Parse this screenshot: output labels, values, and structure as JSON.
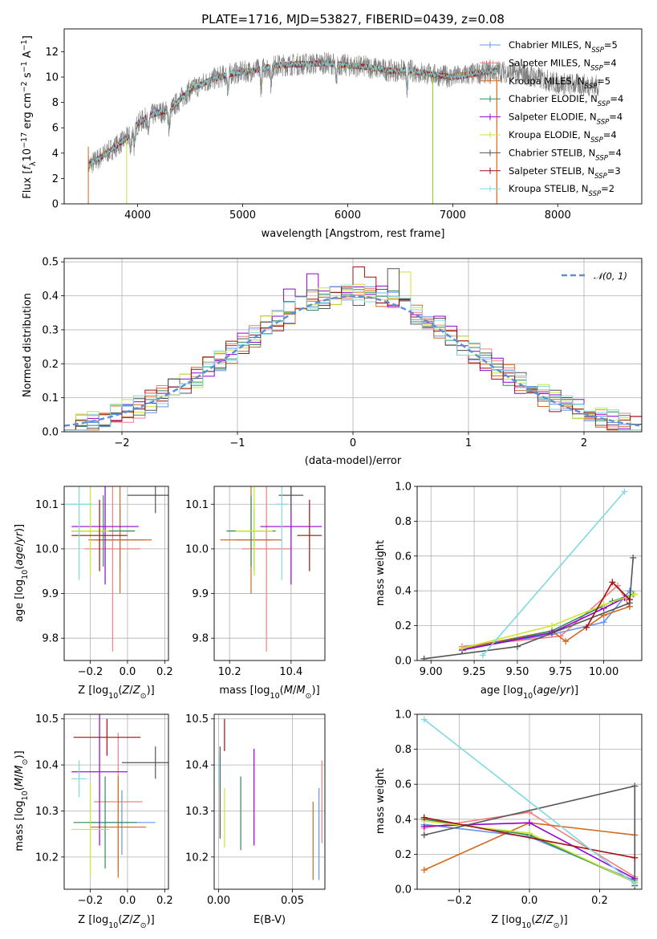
{
  "colors": {
    "Chabrier MILES": "#6495ed",
    "Salpeter MILES": "#f08080",
    "Kroupa MILES": "#d2691e",
    "Chabrier ELODIE": "#2e8b57",
    "Salpeter ELODIE": "#9400d3",
    "Kroupa ELODIE": "#c8e632",
    "Chabrier STELIB": "#555555",
    "Salpeter STELIB": "#a40f0f",
    "Kroupa STELIB": "#7fd9e0"
  },
  "chart_data": [
    {
      "id": "spectrum",
      "type": "line",
      "title": "PLATE=1716, MJD=53827, FIBERID=0439, z=0.08",
      "xlabel": "wavelength [Angstrom, rest frame]",
      "ylabel": "Flux [f_λ 10^{-17} erg cm^{-2} s^{-1} A^{-1}]",
      "xlim": [
        3300,
        8800
      ],
      "ylim": [
        0,
        13.8
      ],
      "xticks": [
        4000,
        5000,
        6000,
        7000,
        8000
      ],
      "yticks": [
        0,
        2,
        4,
        6,
        8,
        10,
        12
      ],
      "grid": false,
      "legend_position": "top-right",
      "legend": [
        {
          "label": "Chabrier MILES, N_SSP=5",
          "base": "Chabrier MILES, N",
          "sub": "SSP",
          "tail": "=5",
          "color": "Chabrier MILES"
        },
        {
          "label": "Salpeter MILES, N_SSP=4",
          "base": "Salpeter MILES, N",
          "sub": "SSP",
          "tail": "=4",
          "color": "Salpeter MILES"
        },
        {
          "label": "Kroupa MILES, N_SSP=5",
          "base": "Kroupa MILES, N",
          "sub": "SSP",
          "tail": "=5",
          "color": "Kroupa MILES"
        },
        {
          "label": "Chabrier ELODIE, N_SSP=4",
          "base": "Chabrier ELODIE, N",
          "sub": "SSP",
          "tail": "=4",
          "color": "Chabrier ELODIE"
        },
        {
          "label": "Salpeter ELODIE, N_SSP=4",
          "base": "Salpeter ELODIE, N",
          "sub": "SSP",
          "tail": "=4",
          "color": "Salpeter ELODIE"
        },
        {
          "label": "Kroupa ELODIE, N_SSP=4",
          "base": "Kroupa ELODIE, N",
          "sub": "SSP",
          "tail": "=4",
          "color": "Kroupa ELODIE"
        },
        {
          "label": "Chabrier STELIB, N_SSP=4",
          "base": "Chabrier STELIB, N",
          "sub": "SSP",
          "tail": "=4",
          "color": "Chabrier STELIB"
        },
        {
          "label": "Salpeter STELIB, N_SSP=3",
          "base": "Salpeter STELIB, N",
          "sub": "SSP",
          "tail": "=3",
          "color": "Salpeter STELIB"
        },
        {
          "label": "Kroupa STELIB, N_SSP=2",
          "base": "Kroupa STELIB, N",
          "sub": "SSP",
          "tail": "=2",
          "color": "Kroupa STELIB"
        }
      ],
      "data_series": {
        "name": "data",
        "color": "#808080",
        "x_start": 3530,
        "x_end": 8400,
        "continuum_points": [
          [
            3530,
            3.0
          ],
          [
            3700,
            4.0
          ],
          [
            3900,
            5.2
          ],
          [
            4000,
            6.3
          ],
          [
            4100,
            6.9
          ],
          [
            4200,
            7.2
          ],
          [
            4300,
            7.3
          ],
          [
            4400,
            8.2
          ],
          [
            4500,
            9.0
          ],
          [
            4700,
            9.8
          ],
          [
            4900,
            10.3
          ],
          [
            5100,
            10.5
          ],
          [
            5300,
            10.9
          ],
          [
            5500,
            11.0
          ],
          [
            5800,
            11.1
          ],
          [
            6000,
            10.9
          ],
          [
            6200,
            10.8
          ],
          [
            6400,
            10.5
          ],
          [
            6600,
            10.5
          ],
          [
            6800,
            10.2
          ],
          [
            7000,
            10.0
          ],
          [
            7400,
            10.5
          ],
          [
            7700,
            10.2
          ],
          [
            8000,
            9.5
          ],
          [
            8400,
            9.3
          ]
        ],
        "noise_amplitude": 0.9,
        "absorption_lines": [
          3934,
          3969,
          4102,
          4300,
          4861,
          5175,
          5270,
          5890,
          6563
        ]
      },
      "model_x_range": [
        3530,
        7420
      ]
    },
    {
      "id": "residual-histogram",
      "type": "bar",
      "xlabel": "(data-model)/error",
      "ylabel": "Normed distribution",
      "xlim": [
        -2.5,
        2.5
      ],
      "ylim": [
        0,
        0.51
      ],
      "xticks": [
        -2,
        -1,
        0,
        1,
        2
      ],
      "yticks": [
        0.0,
        0.1,
        0.2,
        0.3,
        0.4,
        0.5
      ],
      "grid": true,
      "bin_width": 0.1,
      "bins_from": -2.5,
      "bins_to": 2.5,
      "legend_position": "top-right",
      "legend": [
        {
          "label": "N(0,1)",
          "text": "𝒩(0, 1)",
          "color": "#5b8fd6",
          "style": "dashed"
        }
      ],
      "reference_curve": {
        "name": "N(0,1)",
        "mean": 0,
        "sigma": 1,
        "color": "#5b8fd6"
      },
      "histogram_jitter": 0.035,
      "highlight_bins": [
        {
          "x": 0.1,
          "height": 0.485,
          "color": "Salpeter STELIB"
        },
        {
          "x": 0.4,
          "height": 0.48,
          "color": "Chabrier STELIB"
        },
        {
          "x": -0.3,
          "height": 0.465,
          "color": "Salpeter ELODIE"
        },
        {
          "x": 0.5,
          "height": 0.47,
          "color": "Kroupa ELODIE"
        },
        {
          "x": 0.2,
          "height": 0.455,
          "color": "Salpeter STELIB"
        },
        {
          "x": -0.5,
          "height": 0.42,
          "color": "Salpeter ELODIE"
        }
      ]
    },
    {
      "id": "age-vs-metallicity",
      "type": "scatter",
      "xlabel": "Z [log10(Z/Z⊙)]",
      "ylabel": "age [log10(age/yr)]",
      "xlim": [
        -0.34,
        0.22
      ],
      "ylim": [
        9.75,
        10.14
      ],
      "xticks": [
        -0.2,
        0.0,
        0.2
      ],
      "yticks": [
        9.8,
        9.9,
        10.0,
        10.1
      ],
      "grid": true,
      "points": [
        {
          "series": "Chabrier MILES",
          "x": -0.04,
          "y": 10.02,
          "xerr": 0.13,
          "yerr": 0.07
        },
        {
          "series": "Salpeter MILES",
          "x": -0.08,
          "y": 10.0,
          "xerr": 0.15,
          "yerr": 0.23
        },
        {
          "series": "Kroupa MILES",
          "x": -0.04,
          "y": 10.02,
          "xerr": 0.17,
          "yerr": 0.12
        },
        {
          "series": "Chabrier ELODIE",
          "x": -0.13,
          "y": 10.04,
          "xerr": 0.17,
          "yerr": 0.08
        },
        {
          "series": "Salpeter ELODIE",
          "x": -0.12,
          "y": 10.05,
          "xerr": 0.18,
          "yerr": 0.13
        },
        {
          "series": "Kroupa ELODIE",
          "x": -0.2,
          "y": 10.04,
          "xerr": 0.1,
          "yerr": 0.1
        },
        {
          "series": "Chabrier STELIB",
          "x": 0.15,
          "y": 10.12,
          "xerr": 0.15,
          "yerr": 0.04
        },
        {
          "series": "Salpeter STELIB",
          "x": -0.15,
          "y": 10.03,
          "xerr": 0.15,
          "yerr": 0.08
        },
        {
          "series": "Kroupa STELIB",
          "x": -0.26,
          "y": 10.1,
          "xerr": 0.07,
          "yerr": 0.17
        }
      ]
    },
    {
      "id": "age-vs-mass",
      "type": "scatter",
      "xlabel": "mass [log10(M/M⊙)]",
      "ylabel": "",
      "xlim": [
        10.15,
        10.51
      ],
      "ylim": [
        9.75,
        10.14
      ],
      "xticks": [
        10.2,
        10.4
      ],
      "yticks": [
        9.8,
        9.9,
        10.0,
        10.1
      ],
      "grid": true,
      "points": [
        {
          "series": "Chabrier MILES",
          "x": 10.28,
          "y": 10.02,
          "xerr": 0.06,
          "yerr": 0.07
        },
        {
          "series": "Salpeter MILES",
          "x": 10.32,
          "y": 10.0,
          "xerr": 0.08,
          "yerr": 0.23
        },
        {
          "series": "Kroupa MILES",
          "x": 10.27,
          "y": 10.02,
          "xerr": 0.1,
          "yerr": 0.12
        },
        {
          "series": "Chabrier ELODIE",
          "x": 10.27,
          "y": 10.04,
          "xerr": 0.08,
          "yerr": 0.08
        },
        {
          "series": "Salpeter ELODIE",
          "x": 10.4,
          "y": 10.05,
          "xerr": 0.1,
          "yerr": 0.13
        },
        {
          "series": "Kroupa ELODIE",
          "x": 10.28,
          "y": 10.04,
          "xerr": 0.06,
          "yerr": 0.1
        },
        {
          "series": "Chabrier STELIB",
          "x": 10.4,
          "y": 10.12,
          "xerr": 0.04,
          "yerr": 0.04
        },
        {
          "series": "Salpeter STELIB",
          "x": 10.46,
          "y": 10.03,
          "xerr": 0.04,
          "yerr": 0.08
        },
        {
          "series": "Kroupa STELIB",
          "x": 10.37,
          "y": 10.1,
          "xerr": 0.02,
          "yerr": 0.17
        }
      ]
    },
    {
      "id": "mass-weight-vs-age",
      "type": "line",
      "xlabel": "age [log10(age/yr)]",
      "ylabel": "mass weight",
      "xlim": [
        8.92,
        10.22
      ],
      "ylim": [
        0,
        1
      ],
      "xticks": [
        9.0,
        9.25,
        9.5,
        9.75,
        10.0
      ],
      "yticks": [
        0.0,
        0.2,
        0.4,
        0.6,
        0.8,
        1.0
      ],
      "grid": true,
      "series": [
        {
          "name": "Chabrier MILES",
          "x": [
            9.2,
            9.7,
            10.0,
            10.15
          ],
          "y": [
            0.07,
            0.15,
            0.22,
            0.4
          ]
        },
        {
          "name": "Salpeter MILES",
          "x": [
            9.18,
            9.75,
            10.08,
            10.15
          ],
          "y": [
            0.08,
            0.14,
            0.43,
            0.31
          ]
        },
        {
          "name": "Kroupa MILES",
          "x": [
            9.18,
            9.7,
            9.78,
            10.0,
            10.15
          ],
          "y": [
            0.07,
            0.17,
            0.11,
            0.26,
            0.31
          ]
        },
        {
          "name": "Chabrier ELODIE",
          "x": [
            9.18,
            9.7,
            10.05,
            10.17
          ],
          "y": [
            0.06,
            0.17,
            0.34,
            0.38
          ]
        },
        {
          "name": "Salpeter ELODIE",
          "x": [
            9.18,
            9.7,
            10.0,
            10.12
          ],
          "y": [
            0.06,
            0.16,
            0.3,
            0.36
          ]
        },
        {
          "name": "Kroupa ELODIE",
          "x": [
            9.18,
            9.7,
            10.0,
            10.18
          ],
          "y": [
            0.07,
            0.2,
            0.32,
            0.38
          ]
        },
        {
          "name": "Chabrier STELIB",
          "x": [
            8.96,
            9.5,
            10.15,
            10.17
          ],
          "y": [
            0.01,
            0.08,
            0.33,
            0.59
          ]
        },
        {
          "name": "Salpeter STELIB",
          "x": [
            9.9,
            10.05,
            10.15
          ],
          "y": [
            0.19,
            0.45,
            0.35
          ]
        },
        {
          "name": "Kroupa STELIB",
          "x": [
            9.3,
            10.12
          ],
          "y": [
            0.03,
            0.97
          ]
        }
      ]
    },
    {
      "id": "mass-vs-metallicity",
      "type": "scatter",
      "xlabel": "Z [log10(Z/Z⊙)]",
      "ylabel": "mass [log10(M/M⊙)]",
      "xlim": [
        -0.34,
        0.22
      ],
      "ylim": [
        10.13,
        10.51
      ],
      "xticks": [
        -0.2,
        0.0,
        0.2
      ],
      "yticks": [
        10.2,
        10.3,
        10.4,
        10.5
      ],
      "grid": true,
      "points": [
        {
          "series": "Chabrier MILES",
          "x": -0.03,
          "y": 10.275,
          "xerr": 0.18,
          "yerr": 0.07
        },
        {
          "series": "Salpeter MILES",
          "x": -0.05,
          "y": 10.32,
          "xerr": 0.13,
          "yerr": 0.15
        },
        {
          "series": "Kroupa MILES",
          "x": -0.05,
          "y": 10.265,
          "xerr": 0.15,
          "yerr": 0.11
        },
        {
          "series": "Chabrier ELODIE",
          "x": -0.12,
          "y": 10.275,
          "xerr": 0.17,
          "yerr": 0.1
        },
        {
          "series": "Salpeter ELODIE",
          "x": -0.15,
          "y": 10.385,
          "xerr": 0.15,
          "yerr": 0.16
        },
        {
          "series": "Kroupa ELODIE",
          "x": -0.2,
          "y": 10.26,
          "xerr": 0.1,
          "yerr": 0.1
        },
        {
          "series": "Chabrier STELIB",
          "x": 0.15,
          "y": 10.405,
          "xerr": 0.18,
          "yerr": 0.035
        },
        {
          "series": "Salpeter STELIB",
          "x": -0.11,
          "y": 10.46,
          "xerr": 0.18,
          "yerr": 0.04
        },
        {
          "series": "Kroupa STELIB",
          "x": -0.26,
          "y": 10.37,
          "xerr": 0.04,
          "yerr": 0.04
        }
      ]
    },
    {
      "id": "mass-vs-ebv",
      "type": "scatter",
      "xlabel": "E(B-V)",
      "ylabel": "",
      "xlim": [
        -0.003,
        0.072
      ],
      "ylim": [
        10.13,
        10.51
      ],
      "xticks": [
        0.0,
        0.05
      ],
      "yticks": [
        10.2,
        10.3,
        10.4,
        10.5
      ],
      "grid": true,
      "points": [
        {
          "series": "Chabrier MILES",
          "x": 0.068,
          "y": 10.25,
          "xerr": 0.0,
          "yerr": 0.1
        },
        {
          "series": "Salpeter MILES",
          "x": 0.07,
          "y": 10.32,
          "xerr": 0.0,
          "yerr": 0.09
        },
        {
          "series": "Kroupa MILES",
          "x": 0.064,
          "y": 10.235,
          "xerr": 0.0,
          "yerr": 0.085
        },
        {
          "series": "Chabrier ELODIE",
          "x": 0.015,
          "y": 10.295,
          "xerr": 0.0,
          "yerr": 0.08
        },
        {
          "series": "Salpeter ELODIE",
          "x": 0.024,
          "y": 10.33,
          "xerr": 0.0,
          "yerr": 0.105
        },
        {
          "series": "Kroupa ELODIE",
          "x": 0.004,
          "y": 10.285,
          "xerr": 0.0,
          "yerr": 0.065
        },
        {
          "series": "Chabrier STELIB",
          "x": 0.001,
          "y": 10.34,
          "xerr": 0.0,
          "yerr": 0.1
        },
        {
          "series": "Salpeter STELIB",
          "x": 0.004,
          "y": 10.465,
          "xerr": 0.0,
          "yerr": 0.035
        },
        {
          "series": "Kroupa STELIB",
          "x": 0.0,
          "y": 10.385,
          "xerr": 0.0,
          "yerr": 0.035
        }
      ]
    },
    {
      "id": "mass-weight-vs-metallicity",
      "type": "line",
      "xlabel": "Z [log10(Z/Z⊙)]",
      "ylabel": "mass weight",
      "xlim": [
        -0.32,
        0.32
      ],
      "ylim": [
        0,
        1
      ],
      "xticks": [
        -0.2,
        0.0,
        0.2
      ],
      "yticks": [
        0.0,
        0.2,
        0.4,
        0.6,
        0.8,
        1.0
      ],
      "grid": true,
      "series": [
        {
          "name": "Chabrier MILES",
          "x": [
            -0.3,
            0.0,
            0.3
          ],
          "y": [
            0.37,
            0.3,
            0.05
          ]
        },
        {
          "name": "Salpeter MILES",
          "x": [
            -0.3,
            0.0,
            0.3
          ],
          "y": [
            0.35,
            0.44,
            0.07
          ]
        },
        {
          "name": "Kroupa MILES",
          "x": [
            -0.3,
            0.0,
            0.3
          ],
          "y": [
            0.11,
            0.38,
            0.31
          ]
        },
        {
          "name": "Chabrier ELODIE",
          "x": [
            -0.3,
            0.0,
            0.3
          ],
          "y": [
            0.4,
            0.31,
            0.04
          ]
        },
        {
          "name": "Salpeter ELODIE",
          "x": [
            -0.3,
            0.0,
            0.3
          ],
          "y": [
            0.36,
            0.38,
            0.06
          ]
        },
        {
          "name": "Kroupa ELODIE",
          "x": [
            -0.3,
            0.0,
            0.3
          ],
          "y": [
            0.39,
            0.32,
            0.04
          ]
        },
        {
          "name": "Chabrier STELIB",
          "x": [
            -0.3,
            0.3,
            0.3
          ],
          "y": [
            0.31,
            0.59,
            0.02
          ]
        },
        {
          "name": "Salpeter STELIB",
          "x": [
            -0.3,
            0.3
          ],
          "y": [
            0.41,
            0.18
          ]
        },
        {
          "name": "Kroupa STELIB",
          "x": [
            -0.3,
            0.3
          ],
          "y": [
            0.97,
            0.03
          ]
        }
      ]
    }
  ]
}
